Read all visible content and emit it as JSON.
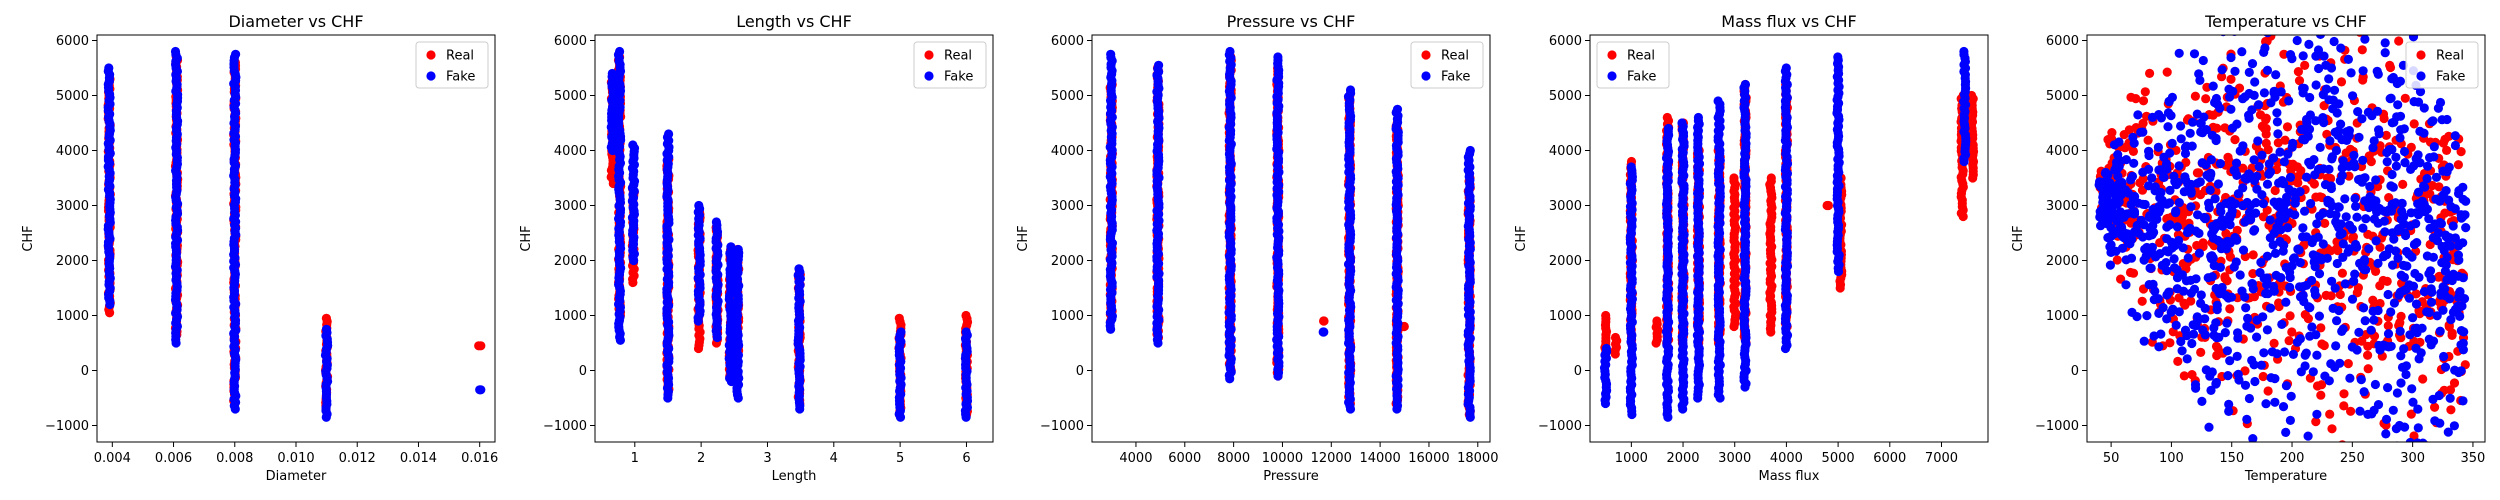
{
  "colors": {
    "real": "#ff0000",
    "fake": "#0000ff",
    "axis": "#000000",
    "background": "#ffffff"
  },
  "chart_data": [
    {
      "type": "scatter",
      "title": "Diameter vs CHF",
      "xlabel": "Diameter",
      "ylabel": "CHF",
      "xlim": [
        0.0035,
        0.0165
      ],
      "ylim": [
        -1300,
        6100
      ],
      "xticks": [
        0.004,
        0.006,
        0.008,
        0.01,
        0.012,
        0.014,
        0.016
      ],
      "xtick_labels": [
        "0.004",
        "0.006",
        "0.008",
        "0.010",
        "0.012",
        "0.014",
        "0.016"
      ],
      "yticks": [
        -1000,
        0,
        1000,
        2000,
        3000,
        4000,
        5000,
        6000
      ],
      "ytick_labels": [
        "−1000",
        "0",
        "1000",
        "2000",
        "3000",
        "4000",
        "5000",
        "6000"
      ],
      "grid": false,
      "legend": "top-right",
      "series": [
        {
          "name": "Real",
          "color": "#ff0000",
          "columns": [
            {
              "x": 0.0039,
              "ymin": 1050,
              "ymax": 5300
            },
            {
              "x": 0.0061,
              "ymin": 650,
              "ymax": 5700
            },
            {
              "x": 0.008,
              "ymin": -550,
              "ymax": 5600
            },
            {
              "x": 0.011,
              "ymin": -700,
              "ymax": 950
            },
            {
              "x": 0.016,
              "ymin": 450,
              "ymax": 450
            }
          ]
        },
        {
          "name": "Fake",
          "color": "#0000ff",
          "columns": [
            {
              "x": 0.0039,
              "ymin": 1200,
              "ymax": 5500
            },
            {
              "x": 0.0061,
              "ymin": 500,
              "ymax": 5800
            },
            {
              "x": 0.008,
              "ymin": -700,
              "ymax": 5750
            },
            {
              "x": 0.011,
              "ymin": -850,
              "ymax": 750
            },
            {
              "x": 0.016,
              "ymin": -350,
              "ymax": -350
            }
          ]
        }
      ]
    },
    {
      "type": "scatter",
      "title": "Length vs CHF",
      "xlabel": "Length",
      "ylabel": "CHF",
      "xlim": [
        0.4,
        6.4
      ],
      "ylim": [
        -1300,
        6100
      ],
      "xticks": [
        1,
        2,
        3,
        4,
        5,
        6
      ],
      "xtick_labels": [
        "1",
        "2",
        "3",
        "4",
        "5",
        "6"
      ],
      "yticks": [
        -1000,
        0,
        1000,
        2000,
        3000,
        4000,
        5000,
        6000
      ],
      "ytick_labels": [
        "−1000",
        "0",
        "1000",
        "2000",
        "3000",
        "4000",
        "5000",
        "6000"
      ],
      "grid": false,
      "legend": "top-right",
      "series": [
        {
          "name": "Real",
          "color": "#ff0000",
          "columns": [
            {
              "x": 0.66,
              "ymin": 3400,
              "ymax": 5300
            },
            {
              "x": 0.77,
              "ymin": 1000,
              "ymax": 5700
            },
            {
              "x": 0.98,
              "ymin": 1600,
              "ymax": 3300
            },
            {
              "x": 1.5,
              "ymin": -400,
              "ymax": 3900
            },
            {
              "x": 1.97,
              "ymin": 400,
              "ymax": 2900
            },
            {
              "x": 2.24,
              "ymin": 500,
              "ymax": 2600
            },
            {
              "x": 2.44,
              "ymin": -100,
              "ymax": 2200
            },
            {
              "x": 2.55,
              "ymin": 300,
              "ymax": 2200
            },
            {
              "x": 3.48,
              "ymin": -600,
              "ymax": 1800
            },
            {
              "x": 5.0,
              "ymin": -800,
              "ymax": 950
            },
            {
              "x": 6.0,
              "ymin": -800,
              "ymax": 1000
            }
          ]
        },
        {
          "name": "Fake",
          "color": "#0000ff",
          "columns": [
            {
              "x": 0.66,
              "ymin": 4000,
              "ymax": 5400
            },
            {
              "x": 0.77,
              "ymin": 550,
              "ymax": 5800
            },
            {
              "x": 0.98,
              "ymin": 2000,
              "ymax": 4100
            },
            {
              "x": 1.5,
              "ymin": -500,
              "ymax": 4300
            },
            {
              "x": 1.97,
              "ymin": 900,
              "ymax": 3000
            },
            {
              "x": 2.24,
              "ymin": 600,
              "ymax": 2700
            },
            {
              "x": 2.44,
              "ymin": -200,
              "ymax": 2250
            },
            {
              "x": 2.55,
              "ymin": -500,
              "ymax": 2200
            },
            {
              "x": 3.48,
              "ymin": -700,
              "ymax": 1850
            },
            {
              "x": 5.0,
              "ymin": -850,
              "ymax": 700
            },
            {
              "x": 6.0,
              "ymin": -850,
              "ymax": 700
            }
          ]
        }
      ]
    },
    {
      "type": "scatter",
      "title": "Pressure vs CHF",
      "xlabel": "Pressure",
      "ylabel": "CHF",
      "xlim": [
        2200,
        18500
      ],
      "ylim": [
        -1300,
        6100
      ],
      "xticks": [
        4000,
        6000,
        8000,
        10000,
        12000,
        14000,
        16000,
        18000
      ],
      "xtick_labels": [
        "4000",
        "6000",
        "8000",
        "10000",
        "12000",
        "14000",
        "16000",
        "18000"
      ],
      "yticks": [
        -1000,
        0,
        1000,
        2000,
        3000,
        4000,
        5000,
        6000
      ],
      "ytick_labels": [
        "−1000",
        "0",
        "1000",
        "2000",
        "3000",
        "4000",
        "5000",
        "6000"
      ],
      "grid": false,
      "legend": "top-right",
      "series": [
        {
          "name": "Real",
          "color": "#ff0000",
          "columns": [
            {
              "x": 2990,
              "ymin": 900,
              "ymax": 5200
            },
            {
              "x": 4900,
              "ymin": 600,
              "ymax": 5500
            },
            {
              "x": 7860,
              "ymin": 0,
              "ymax": 5700
            },
            {
              "x": 9810,
              "ymin": -100,
              "ymax": 5500
            },
            {
              "x": 11700,
              "ymin": 900,
              "ymax": 900
            },
            {
              "x": 12750,
              "ymin": -600,
              "ymax": 5000
            },
            {
              "x": 14700,
              "ymin": -600,
              "ymax": 4500
            },
            {
              "x": 15000,
              "ymin": 800,
              "ymax": 800
            },
            {
              "x": 17650,
              "ymin": -800,
              "ymax": 3500
            }
          ]
        },
        {
          "name": "Fake",
          "color": "#0000ff",
          "columns": [
            {
              "x": 2990,
              "ymin": 750,
              "ymax": 5750
            },
            {
              "x": 4900,
              "ymin": 500,
              "ymax": 5550
            },
            {
              "x": 7860,
              "ymin": -150,
              "ymax": 5800
            },
            {
              "x": 9810,
              "ymin": -100,
              "ymax": 5700
            },
            {
              "x": 11700,
              "ymin": 700,
              "ymax": 700
            },
            {
              "x": 12750,
              "ymin": -700,
              "ymax": 5100
            },
            {
              "x": 14700,
              "ymin": -700,
              "ymax": 4750
            },
            {
              "x": 17650,
              "ymin": -850,
              "ymax": 4000
            }
          ]
        }
      ]
    },
    {
      "type": "scatter",
      "title": "Mass flux vs CHF",
      "xlabel": "Mass flux",
      "ylabel": "CHF",
      "xlim": [
        200,
        7900
      ],
      "ylim": [
        -1300,
        6100
      ],
      "xticks": [
        1000,
        2000,
        3000,
        4000,
        5000,
        6000,
        7000
      ],
      "xtick_labels": [
        "1000",
        "2000",
        "3000",
        "4000",
        "5000",
        "6000",
        "7000"
      ],
      "yticks": [
        -1000,
        0,
        1000,
        2000,
        3000,
        4000,
        5000,
        6000
      ],
      "ytick_labels": [
        "−1000",
        "0",
        "1000",
        "2000",
        "3000",
        "4000",
        "5000",
        "6000"
      ],
      "grid": false,
      "legend": "top-left",
      "series": [
        {
          "name": "Real",
          "color": "#ff0000",
          "columns": [
            {
              "x": 500,
              "ymin": 300,
              "ymax": 1000
            },
            {
              "x": 700,
              "ymin": 300,
              "ymax": 600
            },
            {
              "x": 1000,
              "ymin": 500,
              "ymax": 3800
            },
            {
              "x": 1500,
              "ymin": 500,
              "ymax": 900
            },
            {
              "x": 1700,
              "ymin": 500,
              "ymax": 4600
            },
            {
              "x": 2000,
              "ymin": 500,
              "ymax": 4500
            },
            {
              "x": 2300,
              "ymin": 500,
              "ymax": 4000
            },
            {
              "x": 2700,
              "ymin": 500,
              "ymax": 4000
            },
            {
              "x": 3000,
              "ymin": 800,
              "ymax": 3500
            },
            {
              "x": 3200,
              "ymin": 500,
              "ymax": 5200
            },
            {
              "x": 3700,
              "ymin": 700,
              "ymax": 3500
            },
            {
              "x": 4000,
              "ymin": 800,
              "ymax": 5200
            },
            {
              "x": 4800,
              "ymin": 3000,
              "ymax": 3000
            },
            {
              "x": 5050,
              "ymin": 1500,
              "ymax": 3500
            },
            {
              "x": 7400,
              "ymin": 2800,
              "ymax": 5000
            },
            {
              "x": 7600,
              "ymin": 3500,
              "ymax": 5000
            }
          ]
        },
        {
          "name": "Fake",
          "color": "#0000ff",
          "columns": [
            {
              "x": 500,
              "ymin": -600,
              "ymax": 400
            },
            {
              "x": 1000,
              "ymin": -800,
              "ymax": 3700
            },
            {
              "x": 1700,
              "ymin": -850,
              "ymax": 4400
            },
            {
              "x": 2000,
              "ymin": -700,
              "ymax": 4500
            },
            {
              "x": 2300,
              "ymin": -500,
              "ymax": 4600
            },
            {
              "x": 2700,
              "ymin": -500,
              "ymax": 4900
            },
            {
              "x": 3200,
              "ymin": -300,
              "ymax": 5200
            },
            {
              "x": 4000,
              "ymin": 400,
              "ymax": 5500
            },
            {
              "x": 5000,
              "ymin": 1800,
              "ymax": 5700
            },
            {
              "x": 7450,
              "ymin": 3800,
              "ymax": 5800
            }
          ]
        }
      ]
    },
    {
      "type": "scatter",
      "title": "Temperature vs CHF",
      "xlabel": "Temperature",
      "ylabel": "CHF",
      "xlim": [
        30,
        360
      ],
      "ylim": [
        -1300,
        6100
      ],
      "xticks": [
        50,
        100,
        150,
        200,
        250,
        300,
        350
      ],
      "xtick_labels": [
        "50",
        "100",
        "150",
        "200",
        "250",
        "300",
        "350"
      ],
      "yticks": [
        -1000,
        0,
        1000,
        2000,
        3000,
        4000,
        5000,
        6000
      ],
      "ytick_labels": [
        "−1000",
        "0",
        "1000",
        "2000",
        "3000",
        "4000",
        "5000",
        "6000"
      ],
      "grid": false,
      "legend": "top-right",
      "series": [
        {
          "name": "Real",
          "color": "#ff0000",
          "cloud": {
            "x_range": [
              40,
              345
            ],
            "y_range": [
              -700,
              5300
            ],
            "envelope": [
              [
                40,
                3000,
                3600
              ],
              [
                60,
                2000,
                4600
              ],
              [
                100,
                600,
                4800
              ],
              [
                150,
                200,
                5000
              ],
              [
                200,
                0,
                5200
              ],
              [
                250,
                -300,
                5300
              ],
              [
                300,
                -500,
                4800
              ],
              [
                345,
                0,
                3500
              ]
            ]
          }
        },
        {
          "name": "Fake",
          "color": "#0000ff",
          "cloud": {
            "x_range": [
              40,
              345
            ],
            "y_range": [
              -800,
              5800
            ],
            "envelope": [
              [
                40,
                2600,
                3500
              ],
              [
                70,
                1500,
                4200
              ],
              [
                110,
                200,
                5000
              ],
              [
                160,
                -400,
                5600
              ],
              [
                210,
                -600,
                5800
              ],
              [
                260,
                -700,
                5800
              ],
              [
                300,
                -800,
                4800
              ],
              [
                345,
                0,
                3500
              ]
            ]
          }
        }
      ]
    }
  ]
}
